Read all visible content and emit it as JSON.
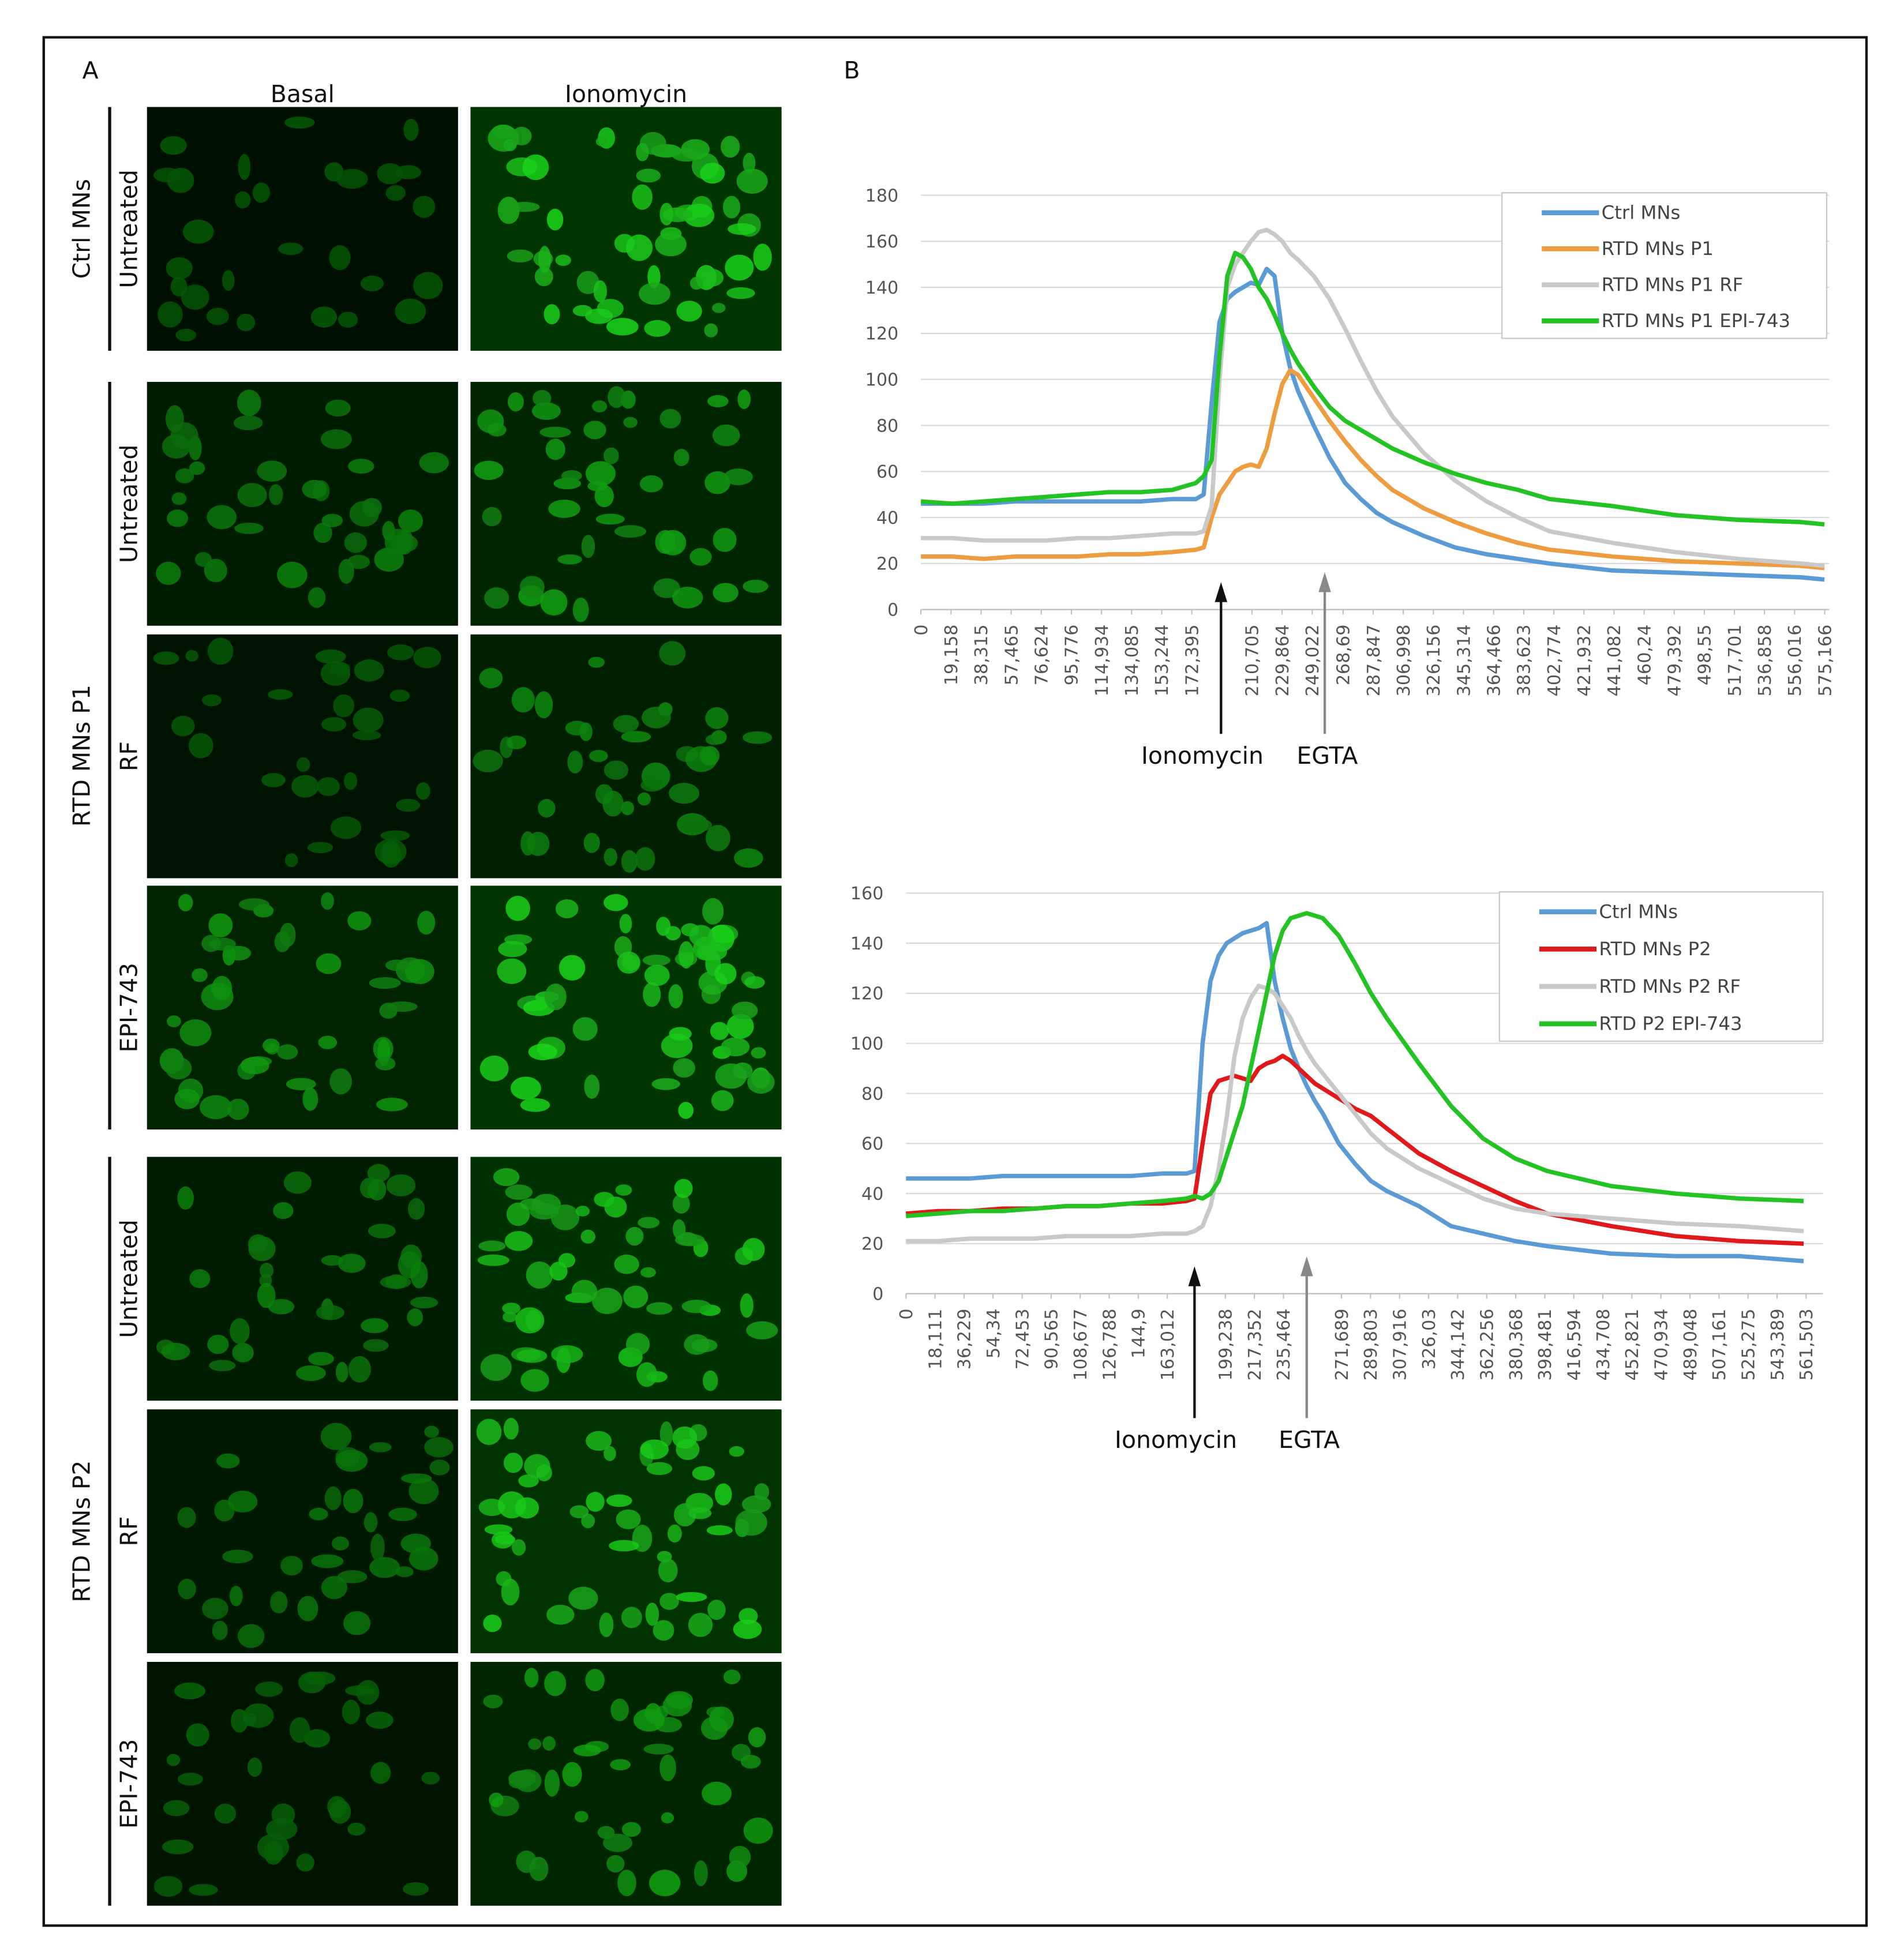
{
  "panel_a": {
    "label": "A",
    "columns": [
      "Basal",
      "Ionomycin"
    ],
    "groups": [
      {
        "name": "Ctrl MNs",
        "rows": [
          "Untreated"
        ]
      },
      {
        "name": "RTD MNs P1",
        "rows": [
          "Untreated",
          "RF",
          "EPI-743"
        ]
      },
      {
        "name": "RTD MNs P2",
        "rows": [
          "Untreated",
          "RF",
          "EPI-743"
        ]
      }
    ]
  },
  "panel_b": {
    "label": "B"
  },
  "chart_data": [
    {
      "type": "line",
      "x": [
        0,
        20,
        40,
        60,
        80,
        100,
        120,
        140,
        160,
        175,
        180,
        185,
        190,
        195,
        200,
        205,
        210,
        215,
        220,
        225,
        230,
        235,
        240,
        250,
        260,
        270,
        280,
        290,
        300,
        320,
        340,
        360,
        380,
        400,
        440,
        480,
        520,
        560,
        575
      ],
      "xlim": [
        0,
        578
      ],
      "ylim": [
        0,
        180
      ],
      "yticks": [
        0,
        20,
        40,
        60,
        80,
        100,
        120,
        140,
        160,
        180
      ],
      "xticks": [
        0,
        {
          "value": 19.158,
          "label": "19,158"
        },
        {
          "value": 38.315,
          "label": "38,315"
        },
        {
          "value": 57.465,
          "label": "57,465"
        },
        {
          "value": 76.624,
          "label": "76,624"
        },
        {
          "value": 95.776,
          "label": "95,776"
        },
        {
          "value": 114.934,
          "label": "114,934"
        },
        {
          "value": 134.085,
          "label": "134,085"
        },
        {
          "value": 153.244,
          "label": "153,244"
        },
        {
          "value": 172.395,
          "label": "172,395"
        },
        {
          "value": 210.705,
          "label": "210,705"
        },
        {
          "value": 229.864,
          "label": "229,864"
        },
        {
          "value": 249.022,
          "label": "249,022"
        },
        {
          "value": 268.69,
          "label": "268,69"
        },
        {
          "value": 287.847,
          "label": "287,847"
        },
        {
          "value": 306.998,
          "label": "306,998"
        },
        {
          "value": 326.156,
          "label": "326,156"
        },
        {
          "value": 345.314,
          "label": "345,314"
        },
        {
          "value": 364.466,
          "label": "364,466"
        },
        {
          "value": 383.623,
          "label": "383,623"
        },
        {
          "value": 402.774,
          "label": "402,774"
        },
        {
          "value": 421.932,
          "label": "421,932"
        },
        {
          "value": 441.082,
          "label": "441,082"
        },
        {
          "value": 460.24,
          "label": "460,24"
        },
        {
          "value": 479.392,
          "label": "479,392"
        },
        {
          "value": 498.55,
          "label": "498,55"
        },
        {
          "value": 517.701,
          "label": "517,701"
        },
        {
          "value": 536.858,
          "label": "536,858"
        },
        {
          "value": 556.016,
          "label": "556,016"
        },
        {
          "value": 575.166,
          "label": "575,166"
        }
      ],
      "grid": true,
      "legend": "upper right",
      "series": [
        {
          "name": "Ctrl MNs",
          "color": "#5b9bd5",
          "values": [
            46,
            46,
            46,
            47,
            47,
            47,
            47,
            47,
            48,
            48,
            50,
            90,
            125,
            135,
            138,
            140,
            142,
            141,
            148,
            145,
            120,
            105,
            95,
            80,
            66,
            55,
            48,
            42,
            38,
            32,
            27,
            24,
            22,
            20,
            17,
            16,
            15,
            14,
            13
          ]
        },
        {
          "name": "RTD MNs P1",
          "color": "#ed9c3f",
          "values": [
            23,
            23,
            22,
            23,
            23,
            23,
            24,
            24,
            25,
            26,
            27,
            40,
            50,
            55,
            60,
            62,
            63,
            62,
            70,
            85,
            98,
            104,
            102,
            92,
            82,
            73,
            65,
            58,
            52,
            44,
            38,
            33,
            29,
            26,
            23,
            21,
            20,
            19,
            18
          ]
        },
        {
          "name": "RTD MNs P1 RF",
          "color": "#c9c9c9",
          "values": [
            31,
            31,
            30,
            30,
            30,
            31,
            31,
            32,
            33,
            33,
            34,
            45,
            100,
            140,
            150,
            155,
            160,
            164,
            165,
            163,
            160,
            155,
            152,
            145,
            135,
            122,
            108,
            95,
            84,
            68,
            56,
            47,
            40,
            34,
            29,
            25,
            22,
            20,
            19
          ]
        },
        {
          "name": "RTD MNs P1 EPI-743",
          "color": "#22c322",
          "values": [
            47,
            46,
            47,
            48,
            49,
            50,
            51,
            51,
            52,
            55,
            58,
            65,
            110,
            145,
            155,
            153,
            148,
            140,
            135,
            128,
            120,
            113,
            107,
            97,
            88,
            82,
            78,
            74,
            70,
            64,
            59,
            55,
            52,
            48,
            45,
            41,
            39,
            38,
            37
          ]
        }
      ],
      "annotations": [
        {
          "text": "Ionomycin",
          "x": 191,
          "color": "#111111"
        },
        {
          "text": "EGTA",
          "x": 257,
          "color": "#888888"
        }
      ]
    },
    {
      "type": "line",
      "x": [
        0,
        20,
        40,
        60,
        80,
        100,
        120,
        140,
        160,
        175,
        180,
        185,
        190,
        195,
        200,
        205,
        210,
        215,
        220,
        225,
        230,
        235,
        240,
        245,
        250,
        255,
        260,
        270,
        280,
        290,
        300,
        320,
        340,
        360,
        380,
        400,
        440,
        480,
        520,
        560
      ],
      "xlim": [
        0,
        572
      ],
      "ylim": [
        0,
        160
      ],
      "yticks": [
        0,
        20,
        40,
        60,
        80,
        100,
        120,
        140,
        160
      ],
      "xticks": [
        0,
        {
          "value": 18.111,
          "label": "18,111"
        },
        {
          "value": 36.229,
          "label": "36,229"
        },
        {
          "value": 54.34,
          "label": "54,34"
        },
        {
          "value": 72.453,
          "label": "72,453"
        },
        {
          "value": 90.565,
          "label": "90,565"
        },
        {
          "value": 108.677,
          "label": "108,677"
        },
        {
          "value": 126.788,
          "label": "126,788"
        },
        {
          "value": 144.9,
          "label": "144,9"
        },
        {
          "value": 163.012,
          "label": "163,012"
        },
        {
          "value": 199.238,
          "label": "199,238"
        },
        {
          "value": 217.352,
          "label": "217,352"
        },
        {
          "value": 235.464,
          "label": "235,464"
        },
        {
          "value": 271.689,
          "label": "271,689"
        },
        {
          "value": 289.803,
          "label": "289,803"
        },
        {
          "value": 307.916,
          "label": "307,916"
        },
        {
          "value": 326.03,
          "label": "326,03"
        },
        {
          "value": 344.142,
          "label": "344,142"
        },
        {
          "value": 362.256,
          "label": "362,256"
        },
        {
          "value": 380.368,
          "label": "380,368"
        },
        {
          "value": 398.481,
          "label": "398,481"
        },
        {
          "value": 416.594,
          "label": "416,594"
        },
        {
          "value": 434.708,
          "label": "434,708"
        },
        {
          "value": 452.821,
          "label": "452,821"
        },
        {
          "value": 470.934,
          "label": "470,934"
        },
        {
          "value": 489.048,
          "label": "489,048"
        },
        {
          "value": 507.161,
          "label": "507,161"
        },
        {
          "value": 525.275,
          "label": "525,275"
        },
        {
          "value": 543.389,
          "label": "543,389"
        },
        {
          "value": 561.503,
          "label": "561,503"
        }
      ],
      "grid": true,
      "legend": "upper right",
      "series": [
        {
          "name": "Ctrl MNs",
          "color": "#5b9bd5",
          "values": [
            46,
            46,
            46,
            47,
            47,
            47,
            47,
            47,
            48,
            48,
            49,
            100,
            125,
            135,
            140,
            142,
            144,
            145,
            146,
            148,
            125,
            110,
            98,
            90,
            83,
            77,
            72,
            60,
            52,
            45,
            41,
            35,
            27,
            24,
            21,
            19,
            16,
            15,
            15,
            13
          ]
        },
        {
          "name": "RTD MNs P2",
          "color": "#e0191b",
          "values": [
            32,
            33,
            33,
            34,
            34,
            35,
            35,
            36,
            36,
            37,
            38,
            60,
            80,
            85,
            86,
            87,
            86,
            85,
            90,
            92,
            93,
            95,
            93,
            90,
            87,
            84,
            82,
            78,
            74,
            71,
            66,
            56,
            49,
            43,
            37,
            32,
            27,
            23,
            21,
            20
          ]
        },
        {
          "name": "RTD MNs P2 RF",
          "color": "#c9c9c9",
          "values": [
            21,
            21,
            22,
            22,
            22,
            23,
            23,
            23,
            24,
            24,
            25,
            27,
            35,
            50,
            70,
            95,
            110,
            118,
            123,
            122,
            120,
            115,
            110,
            103,
            97,
            92,
            88,
            80,
            72,
            64,
            58,
            50,
            44,
            38,
            34,
            32,
            30,
            28,
            27,
            25
          ]
        },
        {
          "name": "RTD P2 EPI-743",
          "color": "#22c322",
          "values": [
            31,
            32,
            33,
            33,
            34,
            35,
            35,
            36,
            37,
            38,
            39,
            38,
            40,
            45,
            55,
            65,
            75,
            90,
            105,
            120,
            135,
            145,
            150,
            151,
            152,
            151,
            150,
            143,
            132,
            120,
            110,
            92,
            75,
            62,
            54,
            49,
            43,
            40,
            38,
            37
          ]
        }
      ],
      "annotations": [
        {
          "text": "Ionomycin",
          "x": 180,
          "color": "#111111"
        },
        {
          "text": "EGTA",
          "x": 250,
          "color": "#888888"
        }
      ]
    }
  ]
}
